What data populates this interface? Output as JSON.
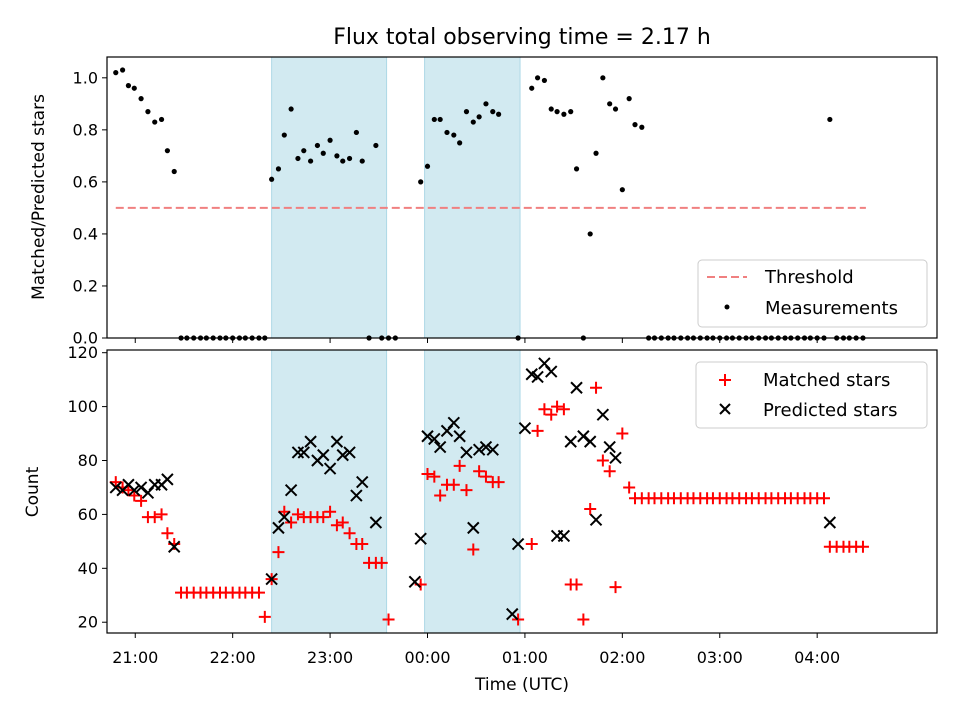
{
  "title": "Flux total observing time = 2.17 h",
  "x_tick_labels": [
    "21:00",
    "22:00",
    "23:00",
    "00:00",
    "01:00",
    "02:00",
    "03:00",
    "04:00"
  ],
  "chart_data": [
    {
      "type": "scatter",
      "name": "top",
      "ylabel": "Matched/Predicted stars",
      "xlabel": "",
      "xlim": [
        -0.29,
        8.23
      ],
      "ylim": [
        0.0,
        1.08
      ],
      "y_ticks": [
        "0.0",
        "0.2",
        "0.4",
        "0.6",
        "0.8",
        "1.0"
      ],
      "shaded_regions": [
        [
          1.4,
          2.58
        ],
        [
          2.97,
          3.95
        ]
      ],
      "shade_color": "#add8e6",
      "legend_position": "lower right",
      "threshold": {
        "name": "Threshold",
        "y": 0.5,
        "x_start": -0.2,
        "x_end": 7.5,
        "color": "#f08080",
        "style": "dashed"
      },
      "measurements": {
        "name": "Measurements",
        "color": "#000000",
        "points": [
          [
            -0.2,
            1.02
          ],
          [
            -0.13,
            1.03
          ],
          [
            -0.07,
            0.97
          ],
          [
            -0.01,
            0.96
          ],
          [
            0.06,
            0.92
          ],
          [
            0.13,
            0.87
          ],
          [
            0.2,
            0.83
          ],
          [
            0.27,
            0.84
          ],
          [
            0.33,
            0.72
          ],
          [
            0.4,
            0.64
          ],
          [
            0.47,
            0.0
          ],
          [
            0.53,
            0.0
          ],
          [
            0.6,
            0.0
          ],
          [
            0.67,
            0.0
          ],
          [
            0.73,
            0.0
          ],
          [
            0.8,
            0.0
          ],
          [
            0.87,
            0.0
          ],
          [
            0.93,
            0.0
          ],
          [
            1.0,
            0.0
          ],
          [
            1.07,
            0.0
          ],
          [
            1.13,
            0.0
          ],
          [
            1.2,
            0.0
          ],
          [
            1.27,
            0.0
          ],
          [
            1.33,
            0.0
          ],
          [
            1.4,
            0.61
          ],
          [
            1.47,
            0.65
          ],
          [
            1.53,
            0.78
          ],
          [
            1.6,
            0.88
          ],
          [
            1.67,
            0.69
          ],
          [
            1.73,
            0.72
          ],
          [
            1.8,
            0.68
          ],
          [
            1.87,
            0.74
          ],
          [
            1.93,
            0.71
          ],
          [
            2.0,
            0.76
          ],
          [
            2.07,
            0.7
          ],
          [
            2.13,
            0.68
          ],
          [
            2.2,
            0.69
          ],
          [
            2.27,
            0.79
          ],
          [
            2.33,
            0.68
          ],
          [
            2.4,
            0.0
          ],
          [
            2.47,
            0.74
          ],
          [
            2.53,
            0.0
          ],
          [
            2.6,
            0.0
          ],
          [
            2.67,
            0.0
          ],
          [
            2.93,
            0.6
          ],
          [
            3.0,
            0.66
          ],
          [
            3.07,
            0.84
          ],
          [
            3.13,
            0.84
          ],
          [
            3.2,
            0.79
          ],
          [
            3.27,
            0.78
          ],
          [
            3.33,
            0.75
          ],
          [
            3.4,
            0.87
          ],
          [
            3.47,
            0.83
          ],
          [
            3.53,
            0.85
          ],
          [
            3.6,
            0.9
          ],
          [
            3.67,
            0.87
          ],
          [
            3.73,
            0.86
          ],
          [
            3.93,
            0.0
          ],
          [
            4.07,
            0.96
          ],
          [
            4.13,
            1.0
          ],
          [
            4.2,
            0.99
          ],
          [
            4.27,
            0.88
          ],
          [
            4.33,
            0.87
          ],
          [
            4.4,
            0.86
          ],
          [
            4.47,
            0.87
          ],
          [
            4.53,
            0.65
          ],
          [
            4.6,
            0.0
          ],
          [
            4.67,
            0.4
          ],
          [
            4.73,
            0.71
          ],
          [
            4.8,
            1.0
          ],
          [
            4.87,
            0.9
          ],
          [
            4.93,
            0.88
          ],
          [
            5.0,
            0.57
          ],
          [
            5.07,
            0.92
          ],
          [
            5.13,
            0.82
          ],
          [
            5.2,
            0.81
          ],
          [
            5.27,
            0.0
          ],
          [
            5.33,
            0.0
          ],
          [
            5.4,
            0.0
          ],
          [
            5.47,
            0.0
          ],
          [
            5.53,
            0.0
          ],
          [
            5.6,
            0.0
          ],
          [
            5.67,
            0.0
          ],
          [
            5.73,
            0.0
          ],
          [
            5.8,
            0.0
          ],
          [
            5.87,
            0.0
          ],
          [
            5.93,
            0.0
          ],
          [
            6.0,
            0.0
          ],
          [
            6.07,
            0.0
          ],
          [
            6.13,
            0.0
          ],
          [
            6.2,
            0.0
          ],
          [
            6.27,
            0.0
          ],
          [
            6.33,
            0.0
          ],
          [
            6.4,
            0.0
          ],
          [
            6.47,
            0.0
          ],
          [
            6.53,
            0.0
          ],
          [
            6.6,
            0.0
          ],
          [
            6.67,
            0.0
          ],
          [
            6.73,
            0.0
          ],
          [
            6.8,
            0.0
          ],
          [
            6.87,
            0.0
          ],
          [
            6.93,
            0.0
          ],
          [
            7.0,
            0.0
          ],
          [
            7.07,
            0.0
          ],
          [
            7.13,
            0.84
          ],
          [
            7.2,
            0.0
          ],
          [
            7.27,
            0.0
          ],
          [
            7.33,
            0.0
          ],
          [
            7.4,
            0.0
          ],
          [
            7.47,
            0.0
          ]
        ]
      }
    },
    {
      "type": "scatter",
      "name": "bottom",
      "ylabel": "Count",
      "xlabel": "Time (UTC)",
      "xlim": [
        -0.29,
        8.23
      ],
      "ylim": [
        16,
        121
      ],
      "y_ticks": [
        "20",
        "40",
        "60",
        "80",
        "100",
        "120"
      ],
      "shaded_regions": [
        [
          1.4,
          2.58
        ],
        [
          2.97,
          3.95
        ]
      ],
      "shade_color": "#add8e6",
      "legend_position": "upper right",
      "series": [
        {
          "name": "Matched stars",
          "marker": "+",
          "color": "#ff0000",
          "points": [
            [
              -0.2,
              72
            ],
            [
              -0.13,
              70
            ],
            [
              -0.07,
              69
            ],
            [
              -0.01,
              67
            ],
            [
              0.06,
              65
            ],
            [
              0.13,
              59
            ],
            [
              0.2,
              59
            ],
            [
              0.27,
              60
            ],
            [
              0.33,
              53
            ],
            [
              0.4,
              49
            ],
            [
              0.47,
              31
            ],
            [
              0.53,
              31
            ],
            [
              0.6,
              31
            ],
            [
              0.67,
              31
            ],
            [
              0.73,
              31
            ],
            [
              0.8,
              31
            ],
            [
              0.87,
              31
            ],
            [
              0.93,
              31
            ],
            [
              1.0,
              31
            ],
            [
              1.07,
              31
            ],
            [
              1.13,
              31
            ],
            [
              1.2,
              31
            ],
            [
              1.27,
              31
            ],
            [
              1.33,
              22
            ],
            [
              1.4,
              36
            ],
            [
              1.47,
              46
            ],
            [
              1.53,
              61
            ],
            [
              1.6,
              57
            ],
            [
              1.67,
              60
            ],
            [
              1.73,
              59
            ],
            [
              1.8,
              59
            ],
            [
              1.87,
              59
            ],
            [
              1.93,
              59
            ],
            [
              2.0,
              61
            ],
            [
              2.07,
              56
            ],
            [
              2.13,
              57
            ],
            [
              2.2,
              53
            ],
            [
              2.27,
              49
            ],
            [
              2.33,
              49
            ],
            [
              2.4,
              42
            ],
            [
              2.47,
              42
            ],
            [
              2.53,
              42
            ],
            [
              2.6,
              21
            ],
            [
              2.93,
              34
            ],
            [
              3.0,
              75
            ],
            [
              3.07,
              74
            ],
            [
              3.13,
              67
            ],
            [
              3.2,
              71
            ],
            [
              3.27,
              71
            ],
            [
              3.33,
              78
            ],
            [
              3.4,
              69
            ],
            [
              3.47,
              47
            ],
            [
              3.53,
              76
            ],
            [
              3.6,
              74
            ],
            [
              3.67,
              72
            ],
            [
              3.73,
              72
            ],
            [
              3.93,
              21
            ],
            [
              4.07,
              49
            ],
            [
              4.13,
              91
            ],
            [
              4.2,
              99
            ],
            [
              4.27,
              97
            ],
            [
              4.33,
              100
            ],
            [
              4.4,
              99
            ],
            [
              4.47,
              34
            ],
            [
              4.53,
              34
            ],
            [
              4.6,
              21
            ],
            [
              4.67,
              62
            ],
            [
              4.73,
              107
            ],
            [
              4.8,
              80
            ],
            [
              4.87,
              76
            ],
            [
              4.93,
              33
            ],
            [
              5.0,
              90
            ],
            [
              5.07,
              70
            ],
            [
              5.13,
              66
            ],
            [
              5.2,
              66
            ],
            [
              5.27,
              66
            ],
            [
              5.33,
              66
            ],
            [
              5.4,
              66
            ],
            [
              5.47,
              66
            ],
            [
              5.53,
              66
            ],
            [
              5.6,
              66
            ],
            [
              5.67,
              66
            ],
            [
              5.73,
              66
            ],
            [
              5.8,
              66
            ],
            [
              5.87,
              66
            ],
            [
              5.93,
              66
            ],
            [
              6.0,
              66
            ],
            [
              6.07,
              66
            ],
            [
              6.13,
              66
            ],
            [
              6.2,
              66
            ],
            [
              6.27,
              66
            ],
            [
              6.33,
              66
            ],
            [
              6.4,
              66
            ],
            [
              6.47,
              66
            ],
            [
              6.53,
              66
            ],
            [
              6.6,
              66
            ],
            [
              6.67,
              66
            ],
            [
              6.73,
              66
            ],
            [
              6.8,
              66
            ],
            [
              6.87,
              66
            ],
            [
              6.93,
              66
            ],
            [
              7.0,
              66
            ],
            [
              7.07,
              66
            ],
            [
              7.13,
              48
            ],
            [
              7.2,
              48
            ],
            [
              7.27,
              48
            ],
            [
              7.33,
              48
            ],
            [
              7.4,
              48
            ],
            [
              7.47,
              48
            ]
          ]
        },
        {
          "name": "Predicted stars",
          "marker": "x",
          "color": "#000000",
          "points": [
            [
              -0.2,
              70
            ],
            [
              -0.13,
              69
            ],
            [
              -0.07,
              71
            ],
            [
              -0.01,
              69
            ],
            [
              0.06,
              70
            ],
            [
              0.13,
              68
            ],
            [
              0.2,
              71
            ],
            [
              0.27,
              71
            ],
            [
              0.33,
              73
            ],
            [
              0.4,
              48
            ],
            [
              1.4,
              36
            ],
            [
              1.47,
              55
            ],
            [
              1.53,
              59
            ],
            [
              1.6,
              69
            ],
            [
              1.67,
              83
            ],
            [
              1.73,
              83
            ],
            [
              1.8,
              87
            ],
            [
              1.87,
              80
            ],
            [
              1.93,
              82
            ],
            [
              2.0,
              77
            ],
            [
              2.07,
              87
            ],
            [
              2.13,
              82
            ],
            [
              2.2,
              83
            ],
            [
              2.27,
              67
            ],
            [
              2.33,
              72
            ],
            [
              2.47,
              57
            ],
            [
              2.87,
              35
            ],
            [
              2.93,
              51
            ],
            [
              3.0,
              89
            ],
            [
              3.07,
              88
            ],
            [
              3.13,
              85
            ],
            [
              3.2,
              91
            ],
            [
              3.27,
              94
            ],
            [
              3.33,
              89
            ],
            [
              3.4,
              83
            ],
            [
              3.47,
              55
            ],
            [
              3.53,
              84
            ],
            [
              3.6,
              85
            ],
            [
              3.67,
              84
            ],
            [
              3.87,
              23
            ],
            [
              3.93,
              49
            ],
            [
              4.0,
              92
            ],
            [
              4.07,
              112
            ],
            [
              4.13,
              111
            ],
            [
              4.2,
              116
            ],
            [
              4.27,
              113
            ],
            [
              4.33,
              52
            ],
            [
              4.4,
              52
            ],
            [
              4.47,
              87
            ],
            [
              4.53,
              107
            ],
            [
              4.6,
              89
            ],
            [
              4.67,
              87
            ],
            [
              4.73,
              58
            ],
            [
              4.8,
              97
            ],
            [
              4.87,
              85
            ],
            [
              4.93,
              81
            ],
            [
              7.13,
              57
            ]
          ]
        }
      ]
    }
  ]
}
